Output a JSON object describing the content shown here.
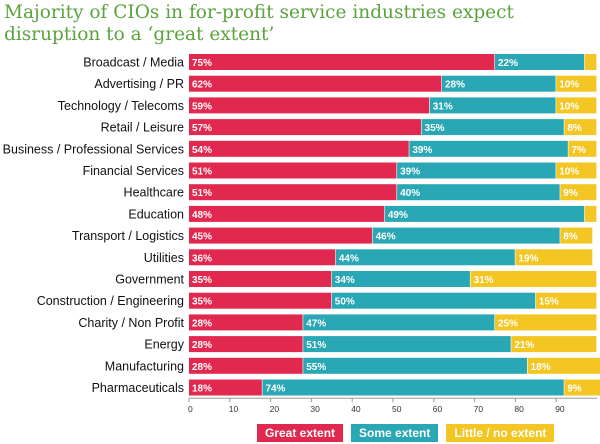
{
  "colors": {
    "great": "#e1284e",
    "some": "#2aa7b5",
    "little": "#f3c623",
    "title": "#5aa33d"
  },
  "chart_data": {
    "type": "bar",
    "orientation": "horizontal",
    "stacked": true,
    "title": "Majority of CIOs in for-profit service industries expect disruption to a ‘great extent’",
    "categories": [
      "Broadcast / Media",
      "Advertising / PR",
      "Technology / Telecoms",
      "Retail / Leisure",
      "Business / Professional Services",
      "Financial Services",
      "Healthcare",
      "Education",
      "Transport / Logistics",
      "Utilities",
      "Government",
      "Construction / Engineering",
      "Charity / Non Profit",
      "Energy",
      "Manufacturing",
      "Pharmaceuticals"
    ],
    "series": [
      {
        "name": "Great extent",
        "values": [
          75,
          62,
          59,
          57,
          54,
          51,
          51,
          48,
          45,
          36,
          35,
          35,
          28,
          28,
          28,
          18
        ]
      },
      {
        "name": "Some extent",
        "values": [
          22,
          28,
          31,
          35,
          39,
          39,
          40,
          49,
          46,
          44,
          34,
          50,
          47,
          51,
          55,
          74
        ]
      },
      {
        "name": "Little / no extent",
        "values": [
          3,
          10,
          10,
          8,
          7,
          10,
          9,
          3,
          8,
          19,
          31,
          15,
          25,
          21,
          18,
          9
        ]
      }
    ],
    "data_labels": [
      [
        "75%",
        "22%",
        ""
      ],
      [
        "62%",
        "28%",
        "10%"
      ],
      [
        "59%",
        "31%",
        "10%"
      ],
      [
        "57%",
        "35%",
        "8%"
      ],
      [
        "54%",
        "39%",
        "7%"
      ],
      [
        "51%",
        "39%",
        "10%"
      ],
      [
        "51%",
        "40%",
        "9%"
      ],
      [
        "48%",
        "49%",
        ""
      ],
      [
        "45%",
        "46%",
        "8%"
      ],
      [
        "36%",
        "44%",
        "19%"
      ],
      [
        "35%",
        "34%",
        "31%"
      ],
      [
        "35%",
        "50%",
        "15%"
      ],
      [
        "28%",
        "47%",
        "25%"
      ],
      [
        "28%",
        "51%",
        "21%"
      ],
      [
        "28%",
        "55%",
        "18%"
      ],
      [
        "18%",
        "74%",
        "9%"
      ]
    ],
    "xticks": [
      "0",
      "10",
      "20",
      "30",
      "40",
      "50",
      "60",
      "70",
      "80",
      "90"
    ],
    "xlim": [
      0,
      100
    ],
    "legend": [
      "Great extent",
      "Some extent",
      "Little / no extent"
    ],
    "legend_position": "bottom-center"
  }
}
